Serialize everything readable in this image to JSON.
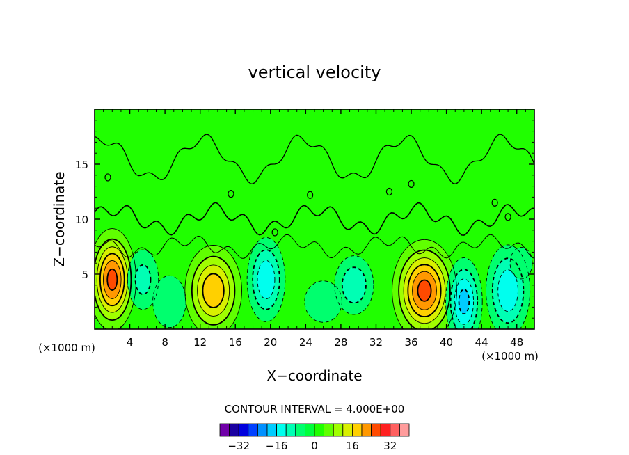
{
  "chart_data": {
    "type": "heatmap",
    "title": "vertical velocity",
    "xlabel": "X−coordinate",
    "ylabel": "Z−coordinate",
    "x_unit_left": "(×1000 m)",
    "x_unit_right": "(×1000 m)",
    "xlim": [
      0,
      50
    ],
    "ylim": [
      0,
      20
    ],
    "x_ticks": [
      "4",
      "8",
      "12",
      "16",
      "20",
      "24",
      "28",
      "32",
      "36",
      "40",
      "44",
      "48"
    ],
    "x_tick_values": [
      4,
      8,
      12,
      16,
      20,
      24,
      28,
      32,
      36,
      40,
      44,
      48
    ],
    "y_ticks": [
      "5",
      "10",
      "15"
    ],
    "y_tick_values": [
      5,
      10,
      15
    ],
    "contour_interval_label": "CONTOUR INTERVAL = 4.000E+00",
    "contour_interval": 4,
    "contour_label": "0.00",
    "cells": [
      {
        "x": 2.0,
        "z": 4.5,
        "amp": 26,
        "sx": 1.4,
        "sz": 2.4
      },
      {
        "x": 5.5,
        "z": 4.5,
        "amp": -10,
        "sx": 1.3,
        "sz": 2.0
      },
      {
        "x": 8.5,
        "z": 2.5,
        "amp": -8,
        "sx": 1.6,
        "sz": 2.0
      },
      {
        "x": 13.5,
        "z": 3.5,
        "amp": 20,
        "sx": 1.8,
        "sz": 2.3
      },
      {
        "x": 19.5,
        "z": 4.5,
        "amp": -16,
        "sx": 1.3,
        "sz": 2.3
      },
      {
        "x": 26.0,
        "z": 2.5,
        "amp": -8,
        "sx": 1.8,
        "sz": 1.6
      },
      {
        "x": 29.5,
        "z": 4.0,
        "amp": -12,
        "sx": 1.5,
        "sz": 1.8
      },
      {
        "x": 37.5,
        "z": 3.5,
        "amp": 26,
        "sx": 1.9,
        "sz": 2.4
      },
      {
        "x": 42.0,
        "z": 2.5,
        "amp": -18,
        "sx": 1.2,
        "sz": 2.3
      },
      {
        "x": 47.0,
        "z": 3.5,
        "amp": -16,
        "sx": 1.5,
        "sz": 2.5
      },
      {
        "x": 48.5,
        "z": 6.0,
        "amp": -6,
        "sx": 1.4,
        "sz": 1.6
      }
    ],
    "colorbar": {
      "tick_labels": [
        "−32",
        "−16",
        "0",
        "16",
        "32"
      ],
      "tick_values": [
        -32,
        -16,
        0,
        16,
        32
      ],
      "levels": [
        -36,
        -32,
        -28,
        -24,
        -20,
        -16,
        -12,
        -8,
        -4,
        0,
        4,
        8,
        12,
        16,
        20,
        24,
        28,
        32,
        36
      ],
      "colors": [
        "#7000a8",
        "#1a00a0",
        "#0000dd",
        "#0040ff",
        "#0090ff",
        "#00ccff",
        "#00ffee",
        "#00ffb4",
        "#00ff6e",
        "#00ff3c",
        "#20ff00",
        "#60ff00",
        "#a0ff00",
        "#d8f000",
        "#ffd000",
        "#ff9800",
        "#ff4a00",
        "#ff2020",
        "#ff6060",
        "#ff9c9c"
      ]
    }
  }
}
